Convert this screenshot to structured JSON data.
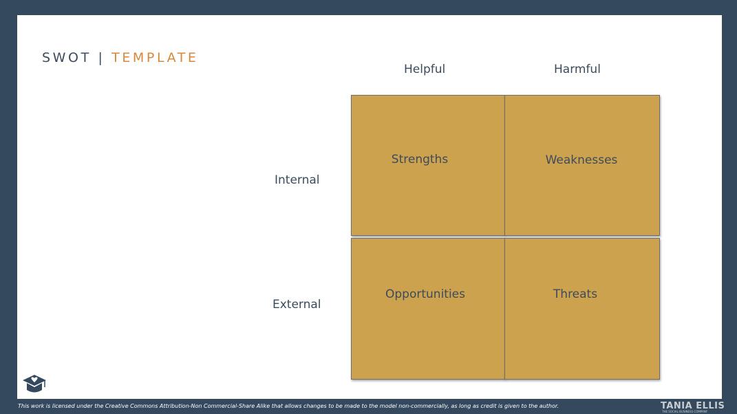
{
  "title": {
    "part1": "SWOT",
    "separator": "|",
    "part2": "TEMPLATE"
  },
  "columns": [
    "Helpful",
    "Harmful"
  ],
  "rows": [
    "Internal",
    "External"
  ],
  "quadrants": {
    "strengths": "Strengths",
    "weaknesses": "Weaknesses",
    "opportunities": "Opportunities",
    "threats": "Threats"
  },
  "footer": {
    "license": "This work is licensed under the Creative Commons Attribution-Non Commercial-Share Alike that allows changes to be made to the model non-commercially, as long as credit is given to the author.",
    "brand": "TANIA ELLIS",
    "brand_tagline": "THE SOCIAL BUSINESS COMPANY"
  },
  "colors": {
    "frame": "#34495e",
    "quadrant_fill": "#cda24e",
    "accent": "#d6883a",
    "text": "#3d4b5c"
  },
  "icons": {
    "logo": "graduation-cap-heart-icon"
  }
}
